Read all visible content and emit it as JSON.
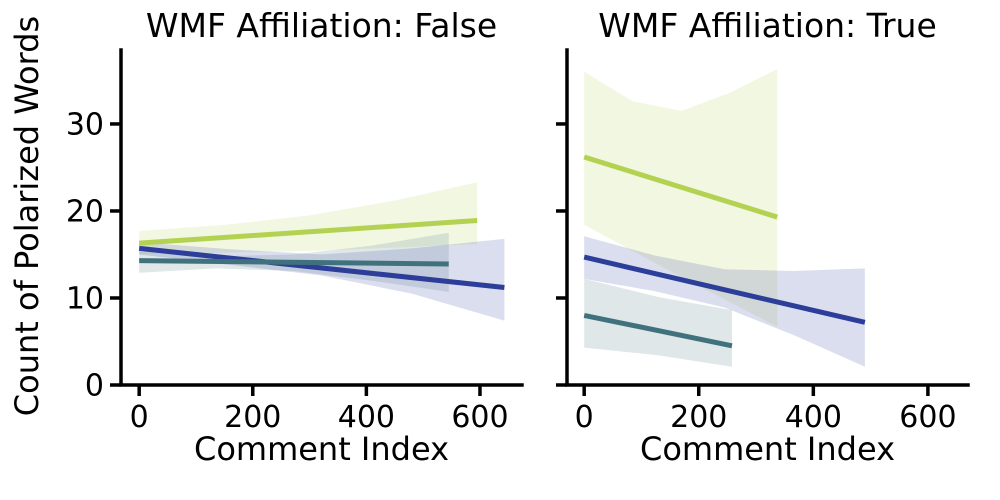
{
  "figure": {
    "background": "#ffffff",
    "text_color": "#000000",
    "spine_color": "#000000"
  },
  "chart_data": [
    {
      "type": "line",
      "panel": "left",
      "title": "WMF Affiliation: False",
      "xlabel": "Comment Index",
      "ylabel": "Count of Polarized Words",
      "xlim": [
        -32,
        674
      ],
      "ylim": [
        0,
        38.5
      ],
      "xticks": [
        0,
        200,
        400,
        600
      ],
      "yticks": [
        0,
        10,
        20,
        30
      ],
      "show_ytick_labels": true,
      "grid": false,
      "legend": "none",
      "series": [
        {
          "name": "yellow-green-group",
          "color": "#b4d252",
          "band_alpha": 0.17,
          "line": {
            "x": [
              0,
              595
            ],
            "y": [
              16.3,
              18.9
            ]
          },
          "band": {
            "x": [
              0,
              150,
              300,
              450,
              595
            ],
            "upper": [
              17.7,
              18.4,
              19.5,
              21.2,
              23.3
            ],
            "lower": [
              15.1,
              15.2,
              15.4,
              15.8,
              16.2
            ]
          }
        },
        {
          "name": "dark-blue-group",
          "color": "#2c3e99",
          "band_alpha": 0.17,
          "line": {
            "x": [
              0,
              643
            ],
            "y": [
              15.7,
              11.2
            ]
          },
          "band": {
            "x": [
              0,
              160,
              320,
              480,
              643
            ],
            "upper": [
              16.4,
              15.6,
              15.0,
              15.7,
              16.8
            ],
            "lower": [
              15.0,
              13.8,
              12.6,
              10.5,
              7.4
            ]
          }
        },
        {
          "name": "teal-group",
          "color": "#40727e",
          "band_alpha": 0.17,
          "line": {
            "x": [
              0,
              545
            ],
            "y": [
              14.3,
              13.9
            ]
          },
          "band": {
            "x": [
              0,
              136,
              272,
              408,
              545
            ],
            "upper": [
              15.3,
              14.8,
              15.0,
              16.0,
              17.5
            ],
            "lower": [
              12.9,
              13.4,
              13.1,
              12.0,
              10.7
            ]
          }
        }
      ]
    },
    {
      "type": "line",
      "panel": "right",
      "title": "WMF Affiliation: True",
      "xlabel": "Comment Index",
      "ylabel": "Count of Polarized Words",
      "xlim": [
        -30,
        670
      ],
      "ylim": [
        0,
        38.5
      ],
      "xticks": [
        0,
        200,
        400,
        600
      ],
      "yticks": [
        0,
        10,
        20,
        30
      ],
      "show_ytick_labels": false,
      "grid": false,
      "legend": "none",
      "series": [
        {
          "name": "yellow-green-group",
          "color": "#b4d252",
          "band_alpha": 0.17,
          "line": {
            "x": [
              0,
              337
            ],
            "y": [
              26.2,
              19.3
            ]
          },
          "band": {
            "x": [
              0,
              85,
              170,
              255,
              337
            ],
            "upper": [
              36.0,
              32.6,
              31.5,
              33.6,
              36.3
            ],
            "lower": [
              18.4,
              15.4,
              12.4,
              9.5,
              6.7
            ]
          }
        },
        {
          "name": "dark-blue-group",
          "color": "#2c3e99",
          "band_alpha": 0.17,
          "line": {
            "x": [
              0,
              490
            ],
            "y": [
              14.7,
              7.2
            ]
          },
          "band": {
            "x": [
              0,
              122,
              245,
              367,
              490
            ],
            "upper": [
              17.1,
              14.9,
              13.3,
              13.1,
              13.4
            ],
            "lower": [
              12.2,
              10.8,
              8.9,
              5.7,
              2.1
            ]
          }
        },
        {
          "name": "teal-group",
          "color": "#40727e",
          "band_alpha": 0.17,
          "line": {
            "x": [
              0,
              258
            ],
            "y": [
              8.0,
              4.5
            ]
          },
          "band": {
            "x": [
              0,
              130,
              258
            ],
            "upper": [
              12.2,
              10.1,
              8.6
            ],
            "lower": [
              4.3,
              3.4,
              2.1
            ]
          }
        }
      ]
    }
  ]
}
